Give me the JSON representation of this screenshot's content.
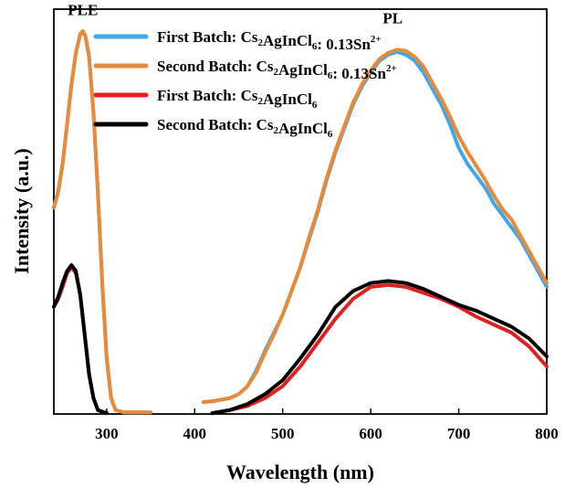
{
  "chart_data": {
    "type": "line",
    "xlabel": "Wavelength (nm)",
    "ylabel": "Intensity (a.u.)",
    "xlim": [
      240,
      800
    ],
    "ylim": [
      0,
      1.02
    ],
    "xticks": [
      300,
      400,
      500,
      600,
      700,
      800
    ],
    "xtick_labels": [
      "300",
      "400",
      "500",
      "600",
      "700",
      "800"
    ],
    "yticks_shown": false,
    "grid": false,
    "legend_position": "top-left",
    "annotations": [
      {
        "text": "PLE",
        "x": 273,
        "y": 1.0
      },
      {
        "text": "PL",
        "x": 625,
        "y": 0.98
      }
    ],
    "series": [
      {
        "name": "First Batch: Cs2AgInCl6: 0.13Sn2+",
        "legend_parts": [
          [
            "First Batch: Cs",
            ""
          ],
          [
            "2",
            "sub"
          ],
          [
            "AgInCl",
            ""
          ],
          [
            "6",
            "sub"
          ],
          [
            ": 0.13Sn",
            ""
          ],
          [
            "2+",
            "sup"
          ]
        ],
        "color": "#3FA9E8",
        "segments": [
          [
            [
              240,
              0.52
            ],
            [
              245,
              0.56
            ],
            [
              250,
              0.63
            ],
            [
              255,
              0.73
            ],
            [
              260,
              0.83
            ],
            [
              265,
              0.91
            ],
            [
              270,
              0.956
            ],
            [
              273,
              0.962
            ],
            [
              276,
              0.95
            ],
            [
              280,
              0.9
            ],
            [
              285,
              0.76
            ],
            [
              290,
              0.56
            ],
            [
              295,
              0.33
            ],
            [
              300,
              0.14
            ],
            [
              305,
              0.04
            ],
            [
              310,
              0.01
            ],
            [
              320,
              0.004
            ],
            [
              350,
              0.004
            ]
          ],
          [
            [
              410,
              0.03
            ],
            [
              420,
              0.032
            ],
            [
              430,
              0.036
            ],
            [
              440,
              0.04
            ],
            [
              450,
              0.05
            ],
            [
              460,
              0.07
            ],
            [
              470,
              0.11
            ],
            [
              480,
              0.16
            ],
            [
              490,
              0.205
            ],
            [
              500,
              0.25
            ],
            [
              510,
              0.31
            ],
            [
              520,
              0.37
            ],
            [
              530,
              0.44
            ],
            [
              540,
              0.51
            ],
            [
              550,
              0.59
            ],
            [
              560,
              0.66
            ],
            [
              570,
              0.72
            ],
            [
              580,
              0.78
            ],
            [
              590,
              0.825
            ],
            [
              600,
              0.86
            ],
            [
              610,
              0.89
            ],
            [
              620,
              0.905
            ],
            [
              630,
              0.912
            ],
            [
              640,
              0.905
            ],
            [
              650,
              0.89
            ],
            [
              660,
              0.86
            ],
            [
              670,
              0.82
            ],
            [
              680,
              0.78
            ],
            [
              690,
              0.73
            ],
            [
              700,
              0.67
            ],
            [
              710,
              0.63
            ],
            [
              720,
              0.6
            ],
            [
              730,
              0.57
            ],
            [
              740,
              0.53
            ],
            [
              750,
              0.5
            ],
            [
              760,
              0.47
            ],
            [
              770,
              0.44
            ],
            [
              780,
              0.4
            ],
            [
              790,
              0.36
            ],
            [
              800,
              0.32
            ]
          ]
        ]
      },
      {
        "name": "Second Batch: Cs2AgInCl6: 0.13Sn2+",
        "legend_parts": [
          [
            "Second Batch: Cs",
            ""
          ],
          [
            "2",
            "sub"
          ],
          [
            "AgInCl",
            ""
          ],
          [
            "6",
            "sub"
          ],
          [
            ": 0.13Sn",
            ""
          ],
          [
            "2+",
            "sup"
          ]
        ],
        "color": "#E88A3A",
        "segments": [
          [
            [
              240,
              0.52
            ],
            [
              245,
              0.56
            ],
            [
              250,
              0.63
            ],
            [
              255,
              0.73
            ],
            [
              260,
              0.83
            ],
            [
              265,
              0.91
            ],
            [
              270,
              0.958
            ],
            [
              273,
              0.965
            ],
            [
              276,
              0.952
            ],
            [
              280,
              0.9
            ],
            [
              285,
              0.76
            ],
            [
              290,
              0.56
            ],
            [
              295,
              0.33
            ],
            [
              300,
              0.14
            ],
            [
              305,
              0.04
            ],
            [
              310,
              0.01
            ],
            [
              320,
              0.004
            ],
            [
              350,
              0.004
            ]
          ],
          [
            [
              410,
              0.03
            ],
            [
              420,
              0.032
            ],
            [
              430,
              0.036
            ],
            [
              440,
              0.04
            ],
            [
              450,
              0.05
            ],
            [
              460,
              0.07
            ],
            [
              470,
              0.105
            ],
            [
              480,
              0.155
            ],
            [
              490,
              0.2
            ],
            [
              500,
              0.25
            ],
            [
              510,
              0.31
            ],
            [
              520,
              0.37
            ],
            [
              530,
              0.445
            ],
            [
              540,
              0.515
            ],
            [
              550,
              0.595
            ],
            [
              560,
              0.665
            ],
            [
              570,
              0.725
            ],
            [
              580,
              0.785
            ],
            [
              590,
              0.83
            ],
            [
              600,
              0.865
            ],
            [
              610,
              0.895
            ],
            [
              620,
              0.91
            ],
            [
              630,
              0.918
            ],
            [
              640,
              0.915
            ],
            [
              650,
              0.9
            ],
            [
              660,
              0.875
            ],
            [
              670,
              0.835
            ],
            [
              680,
              0.795
            ],
            [
              690,
              0.75
            ],
            [
              700,
              0.7
            ],
            [
              710,
              0.66
            ],
            [
              720,
              0.625
            ],
            [
              730,
              0.59
            ],
            [
              740,
              0.55
            ],
            [
              750,
              0.515
            ],
            [
              760,
              0.49
            ],
            [
              770,
              0.45
            ],
            [
              780,
              0.41
            ],
            [
              790,
              0.37
            ],
            [
              800,
              0.33
            ]
          ]
        ]
      },
      {
        "name": "First Batch: Cs2AgInCl6",
        "legend_parts": [
          [
            "First Batch: Cs",
            ""
          ],
          [
            "2",
            "sub"
          ],
          [
            "AgInCl",
            ""
          ],
          [
            "6",
            "sub"
          ]
        ],
        "color": "#E02020",
        "segments": [
          [
            [
              240,
              0.27
            ],
            [
              245,
              0.29
            ],
            [
              250,
              0.32
            ],
            [
              255,
              0.355
            ],
            [
              260,
              0.37
            ],
            [
              265,
              0.355
            ],
            [
              270,
              0.3
            ],
            [
              275,
              0.2
            ],
            [
              280,
              0.1
            ],
            [
              285,
              0.04
            ],
            [
              290,
              0.01
            ],
            [
              300,
              0.002
            ]
          ],
          [
            [
              420,
              0.002
            ],
            [
              440,
              0.01
            ],
            [
              460,
              0.02
            ],
            [
              480,
              0.04
            ],
            [
              500,
              0.07
            ],
            [
              520,
              0.12
            ],
            [
              540,
              0.18
            ],
            [
              560,
              0.24
            ],
            [
              580,
              0.29
            ],
            [
              600,
              0.32
            ],
            [
              620,
              0.325
            ],
            [
              640,
              0.32
            ],
            [
              660,
              0.305
            ],
            [
              680,
              0.29
            ],
            [
              700,
              0.27
            ],
            [
              720,
              0.245
            ],
            [
              740,
              0.225
            ],
            [
              760,
              0.205
            ],
            [
              780,
              0.17
            ],
            [
              800,
              0.12
            ]
          ]
        ]
      },
      {
        "name": "Second Batch: Cs2AgInCl6",
        "legend_parts": [
          [
            "Second Batch: Cs",
            ""
          ],
          [
            "2",
            "sub"
          ],
          [
            "AgInCl",
            ""
          ],
          [
            "6",
            "sub"
          ]
        ],
        "color": "#000000",
        "segments": [
          [
            [
              240,
              0.27
            ],
            [
              245,
              0.295
            ],
            [
              250,
              0.33
            ],
            [
              255,
              0.36
            ],
            [
              260,
              0.375
            ],
            [
              265,
              0.36
            ],
            [
              270,
              0.3
            ],
            [
              275,
              0.2
            ],
            [
              280,
              0.1
            ],
            [
              285,
              0.04
            ],
            [
              290,
              0.01
            ],
            [
              300,
              0.002
            ]
          ],
          [
            [
              420,
              0.002
            ],
            [
              440,
              0.01
            ],
            [
              460,
              0.025
            ],
            [
              480,
              0.05
            ],
            [
              500,
              0.085
            ],
            [
              520,
              0.14
            ],
            [
              540,
              0.2
            ],
            [
              560,
              0.27
            ],
            [
              580,
              0.31
            ],
            [
              600,
              0.33
            ],
            [
              620,
              0.335
            ],
            [
              640,
              0.33
            ],
            [
              660,
              0.315
            ],
            [
              680,
              0.295
            ],
            [
              700,
              0.275
            ],
            [
              720,
              0.26
            ],
            [
              740,
              0.24
            ],
            [
              760,
              0.22
            ],
            [
              780,
              0.19
            ],
            [
              800,
              0.145
            ]
          ]
        ]
      }
    ]
  }
}
